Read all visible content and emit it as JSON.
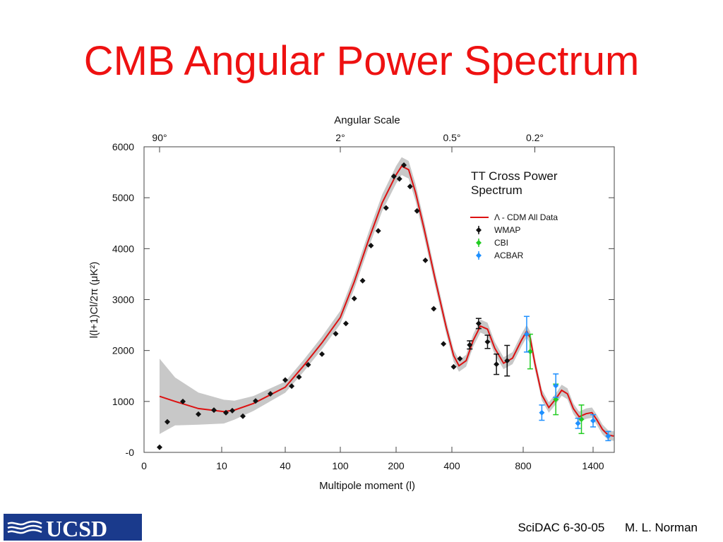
{
  "slide": {
    "title": "CMB Angular Power Spectrum",
    "footer_event": "SciDAC 6-30-05",
    "footer_author": "M. L. Norman",
    "logo_text": "UCSD",
    "colors": {
      "title": "#ee1111",
      "logo_bg": "#1a3a8c",
      "model_line": "#dd1111",
      "band": "#c8c8c8"
    }
  },
  "chart_data": {
    "type": "scatter",
    "top_axis_title": "Angular Scale",
    "top_ticks": [
      {
        "label": "90°",
        "l": 2
      },
      {
        "label": "2°",
        "l": 100
      },
      {
        "label": "0.5°",
        "l": 400
      },
      {
        "label": "0.2°",
        "l": 900
      }
    ],
    "xlabel": "Multipole moment (l)",
    "ylabel": "l(l+1)Cl/2π (μK²)",
    "x_scale": "composite (log at low l, square-root-like at high l)",
    "x_ticks": [
      {
        "label": "0",
        "l": 0
      },
      {
        "label": "10",
        "l": 10
      },
      {
        "label": "40",
        "l": 40
      },
      {
        "label": "100",
        "l": 100
      },
      {
        "label": "200",
        "l": 200
      },
      {
        "label": "400",
        "l": 400
      },
      {
        "label": "800",
        "l": 800
      },
      {
        "label": "1400",
        "l": 1400
      }
    ],
    "y_ticks": [
      {
        "label": "-0",
        "v": 0
      },
      {
        "label": "1000",
        "v": 1000
      },
      {
        "label": "2000",
        "v": 2000
      },
      {
        "label": "3000",
        "v": 3000
      },
      {
        "label": "4000",
        "v": 4000
      },
      {
        "label": "5000",
        "v": 5000
      },
      {
        "label": "6000",
        "v": 6000
      }
    ],
    "ylim": [
      -100,
      6000
    ],
    "grid": false,
    "legend_title": "TT Cross Power Spectrum",
    "legend_position": "top-right",
    "series": [
      {
        "name": "Λ - CDM All Data",
        "kind": "line",
        "color": "#dd1111",
        "points": [
          [
            2,
            1100
          ],
          [
            4,
            1000
          ],
          [
            7,
            860
          ],
          [
            11,
            800
          ],
          [
            16,
            830
          ],
          [
            25,
            960
          ],
          [
            40,
            1280
          ],
          [
            60,
            1700
          ],
          [
            80,
            2150
          ],
          [
            100,
            2650
          ],
          [
            125,
            3350
          ],
          [
            150,
            4150
          ],
          [
            175,
            4900
          ],
          [
            200,
            5450
          ],
          [
            220,
            5620
          ],
          [
            245,
            5550
          ],
          [
            270,
            5100
          ],
          [
            300,
            4400
          ],
          [
            340,
            3400
          ],
          [
            380,
            2450
          ],
          [
            410,
            1900
          ],
          [
            440,
            1700
          ],
          [
            480,
            1800
          ],
          [
            520,
            2200
          ],
          [
            560,
            2480
          ],
          [
            600,
            2420
          ],
          [
            640,
            2050
          ],
          [
            690,
            1750
          ],
          [
            740,
            1850
          ],
          [
            790,
            2200
          ],
          [
            830,
            2380
          ],
          [
            860,
            2250
          ],
          [
            900,
            1750
          ],
          [
            960,
            1130
          ],
          [
            1020,
            880
          ],
          [
            1080,
            1050
          ],
          [
            1130,
            1220
          ],
          [
            1180,
            1150
          ],
          [
            1230,
            860
          ],
          [
            1280,
            700
          ],
          [
            1340,
            760
          ],
          [
            1390,
            780
          ],
          [
            1440,
            640
          ],
          [
            1500,
            450
          ],
          [
            1560,
            340
          ],
          [
            1620,
            320
          ]
        ]
      },
      {
        "name": "WMAP",
        "kind": "points",
        "color": "#111111",
        "points": [
          {
            "l": 2,
            "y": 100,
            "e": 0
          },
          {
            "l": 3,
            "y": 600,
            "e": 0
          },
          {
            "l": 5,
            "y": 1000,
            "e": 0
          },
          {
            "l": 7,
            "y": 750,
            "e": 0
          },
          {
            "l": 9,
            "y": 830,
            "e": 0
          },
          {
            "l": 12,
            "y": 780,
            "e": 0
          },
          {
            "l": 15,
            "y": 820,
            "e": 0
          },
          {
            "l": 20,
            "y": 710,
            "e": 0
          },
          {
            "l": 26,
            "y": 1010,
            "e": 0
          },
          {
            "l": 33,
            "y": 1150,
            "e": 0
          },
          {
            "l": 40,
            "y": 1420,
            "e": 0
          },
          {
            "l": 47,
            "y": 1300,
            "e": 0
          },
          {
            "l": 55,
            "y": 1480,
            "e": 0
          },
          {
            "l": 65,
            "y": 1720,
            "e": 0
          },
          {
            "l": 80,
            "y": 1930,
            "e": 0
          },
          {
            "l": 95,
            "y": 2330,
            "e": 0
          },
          {
            "l": 110,
            "y": 2530,
            "e": 0
          },
          {
            "l": 125,
            "y": 3020,
            "e": 0
          },
          {
            "l": 140,
            "y": 3370,
            "e": 0
          },
          {
            "l": 155,
            "y": 4060,
            "e": 0
          },
          {
            "l": 168,
            "y": 4350,
            "e": 0
          },
          {
            "l": 182,
            "y": 4800,
            "e": 0
          },
          {
            "l": 196,
            "y": 5420,
            "e": 0
          },
          {
            "l": 212,
            "y": 5370,
            "e": 0
          },
          {
            "l": 228,
            "y": 5640,
            "e": 0
          },
          {
            "l": 250,
            "y": 5220,
            "e": 0
          },
          {
            "l": 275,
            "y": 4740,
            "e": 0
          },
          {
            "l": 305,
            "y": 3770,
            "e": 0
          },
          {
            "l": 335,
            "y": 2820,
            "e": 0
          },
          {
            "l": 370,
            "y": 2130,
            "e": 0
          },
          {
            "l": 410,
            "y": 1680,
            "e": 0
          },
          {
            "l": 445,
            "y": 1840,
            "e": 0
          },
          {
            "l": 500,
            "y": 2110,
            "e": 80
          },
          {
            "l": 550,
            "y": 2530,
            "e": 100
          },
          {
            "l": 600,
            "y": 2170,
            "e": 130
          },
          {
            "l": 650,
            "y": 1730,
            "e": 200
          },
          {
            "l": 710,
            "y": 1800,
            "e": 300
          }
        ]
      },
      {
        "name": "CBI",
        "kind": "points",
        "color": "#22cc22",
        "points": [
          {
            "l": 860,
            "y": 1980,
            "e": 340
          },
          {
            "l": 1080,
            "y": 1040,
            "e": 300
          },
          {
            "l": 1300,
            "y": 650,
            "e": 280
          }
        ]
      },
      {
        "name": "ACBAR",
        "kind": "points",
        "color": "#1e90ff",
        "points": [
          {
            "l": 830,
            "y": 2320,
            "e": 350
          },
          {
            "l": 960,
            "y": 780,
            "e": 150
          },
          {
            "l": 1080,
            "y": 1310,
            "e": 230
          },
          {
            "l": 1270,
            "y": 570,
            "e": 100
          },
          {
            "l": 1400,
            "y": 620,
            "e": 120
          },
          {
            "l": 1560,
            "y": 320,
            "e": 90
          }
        ]
      }
    ]
  }
}
